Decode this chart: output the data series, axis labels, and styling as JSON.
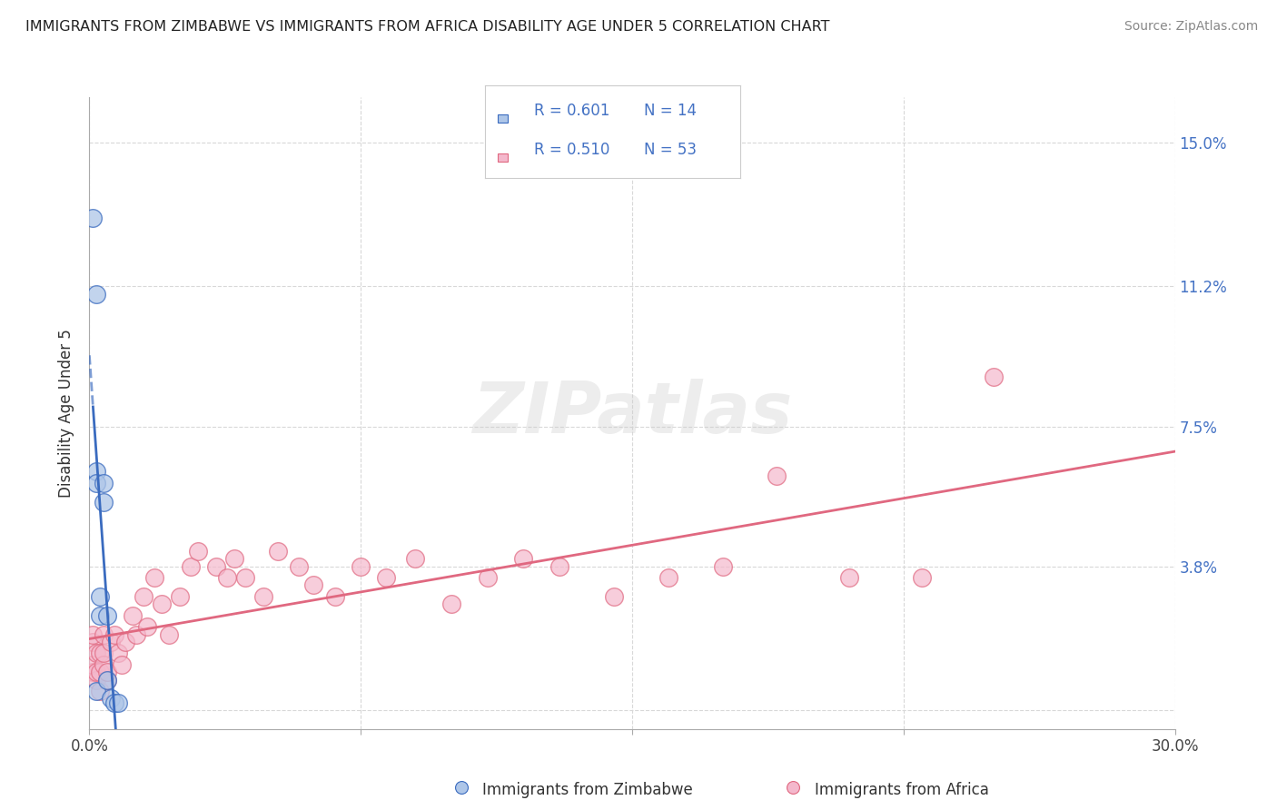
{
  "title": "IMMIGRANTS FROM ZIMBABWE VS IMMIGRANTS FROM AFRICA DISABILITY AGE UNDER 5 CORRELATION CHART",
  "source": "Source: ZipAtlas.com",
  "ylabel": "Disability Age Under 5",
  "xlim": [
    0,
    0.3
  ],
  "ylim": [
    -0.005,
    0.162
  ],
  "yticks": [
    0.0,
    0.038,
    0.075,
    0.112,
    0.15
  ],
  "ytick_labels": [
    "",
    "3.8%",
    "7.5%",
    "11.2%",
    "15.0%"
  ],
  "xticks": [
    0.0,
    0.075,
    0.15,
    0.225,
    0.3
  ],
  "xtick_labels": [
    "0.0%",
    "",
    "",
    "",
    "30.0%"
  ],
  "zimbabwe_color": "#aec6e8",
  "africa_color": "#f4b8cc",
  "blue_line_color": "#3a6bbf",
  "pink_line_color": "#e06880",
  "zimbabwe_R": "0.601",
  "zimbabwe_N": "14",
  "africa_R": "0.510",
  "africa_N": "53",
  "zimbabwe_x": [
    0.001,
    0.002,
    0.002,
    0.002,
    0.002,
    0.003,
    0.003,
    0.004,
    0.004,
    0.005,
    0.005,
    0.006,
    0.007,
    0.008
  ],
  "zimbabwe_y": [
    0.13,
    0.11,
    0.063,
    0.06,
    0.005,
    0.03,
    0.025,
    0.06,
    0.055,
    0.025,
    0.008,
    0.003,
    0.002,
    0.002
  ],
  "africa_x": [
    0.001,
    0.001,
    0.001,
    0.001,
    0.002,
    0.002,
    0.002,
    0.003,
    0.003,
    0.003,
    0.004,
    0.004,
    0.004,
    0.005,
    0.005,
    0.006,
    0.007,
    0.008,
    0.009,
    0.01,
    0.012,
    0.013,
    0.015,
    0.016,
    0.018,
    0.02,
    0.022,
    0.025,
    0.028,
    0.03,
    0.035,
    0.038,
    0.04,
    0.043,
    0.048,
    0.052,
    0.058,
    0.062,
    0.068,
    0.075,
    0.082,
    0.09,
    0.1,
    0.11,
    0.12,
    0.13,
    0.145,
    0.16,
    0.175,
    0.19,
    0.21,
    0.23,
    0.25
  ],
  "africa_y": [
    0.01,
    0.012,
    0.018,
    0.02,
    0.008,
    0.01,
    0.015,
    0.005,
    0.01,
    0.015,
    0.012,
    0.015,
    0.02,
    0.008,
    0.01,
    0.018,
    0.02,
    0.015,
    0.012,
    0.018,
    0.025,
    0.02,
    0.03,
    0.022,
    0.035,
    0.028,
    0.02,
    0.03,
    0.038,
    0.042,
    0.038,
    0.035,
    0.04,
    0.035,
    0.03,
    0.042,
    0.038,
    0.033,
    0.03,
    0.038,
    0.035,
    0.04,
    0.028,
    0.035,
    0.04,
    0.038,
    0.03,
    0.035,
    0.038,
    0.062,
    0.035,
    0.035,
    0.088
  ],
  "background_color": "#ffffff",
  "grid_color": "#d8d8d8"
}
